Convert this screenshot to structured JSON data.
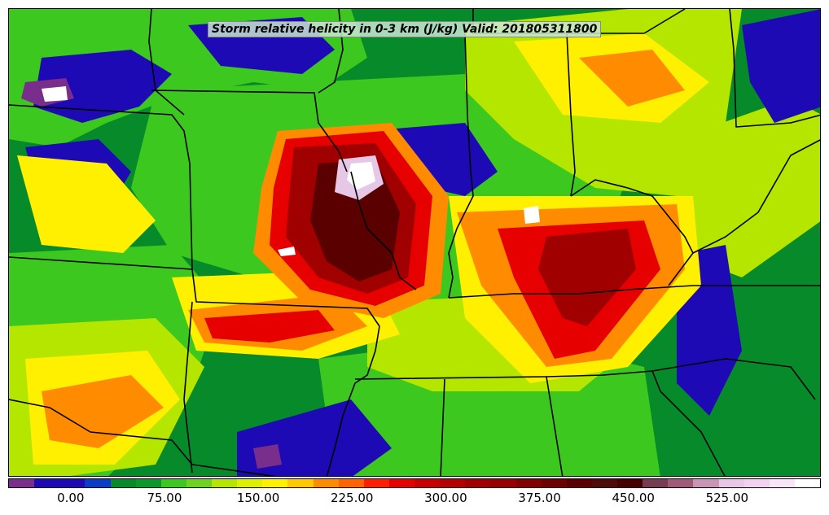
{
  "title": "Storm relative helicity in 0-3 km (J/kg) Valid: 201805311800",
  "colorbar": {
    "labels": [
      "0.00",
      "75.00",
      "150.00",
      "225.00",
      "300.00",
      "375.00",
      "450.00",
      "525.00"
    ],
    "label_values": [
      0,
      75,
      150,
      225,
      300,
      375,
      450,
      525
    ],
    "min": -50,
    "max": 600,
    "colors": [
      "#7a2e8c",
      "#1e0ab4",
      "#1e0ab4",
      "#0a3cc8",
      "#068a2a",
      "#0a9a2a",
      "#3cc81e",
      "#6ed21e",
      "#b4e600",
      "#dcf000",
      "#fff000",
      "#ffc800",
      "#ff8c00",
      "#ff6400",
      "#ff1e00",
      "#e60000",
      "#c80000",
      "#b40000",
      "#a00000",
      "#960000",
      "#820000",
      "#6e0000",
      "#5a0000",
      "#500a0a",
      "#460000",
      "#783c50",
      "#a05a78",
      "#c896b4",
      "#e6c8e6",
      "#f0d2f0",
      "#f8e6f8",
      "#ffffff"
    ]
  },
  "field_colors": {
    "neg": "#7a2e8c",
    "blue": "#1e0ab4",
    "dgreen": "#068a2a",
    "green": "#3cc81e",
    "lgreen": "#b4e600",
    "yellow": "#fff000",
    "orange": "#ff8c00",
    "red": "#e60000",
    "dred": "#a00000",
    "maroon": "#5a0000",
    "pink": "#e6c8e6",
    "white": "#ffffff"
  }
}
